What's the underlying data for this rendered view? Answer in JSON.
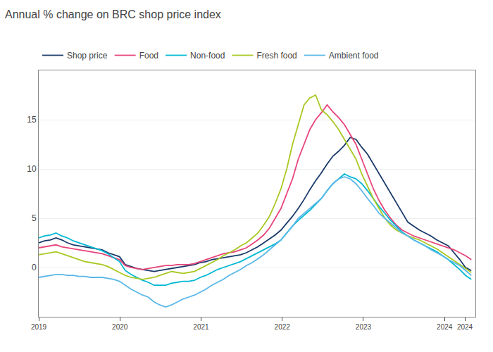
{
  "chart_data": {
    "type": "line",
    "title": "Annual % change on BRC shop price index",
    "x": [
      2019.0,
      2019.071067,
      2019.142133,
      2019.2132,
      2019.284267,
      2019.355333,
      2019.4264,
      2019.497467,
      2019.568533,
      2019.6396,
      2019.710667,
      2019.781733,
      2019.8528,
      2019.923867,
      2019.994933,
      2020.066,
      2020.137067,
      2020.208133,
      2020.2792,
      2020.350267,
      2020.421333,
      2020.4924,
      2020.563467,
      2020.634533,
      2020.7056,
      2020.776667,
      2020.847733,
      2020.9188,
      2020.989867,
      2021.060933,
      2021.132,
      2021.203067,
      2021.274133,
      2021.3452,
      2021.416267,
      2021.487333,
      2021.5584,
      2021.629467,
      2021.700533,
      2021.7716,
      2021.842667,
      2021.913733,
      2021.9848,
      2022.055867,
      2022.126933,
      2022.198,
      2022.269067,
      2022.340133,
      2022.4112,
      2022.482267,
      2022.553333,
      2022.6244,
      2022.695467,
      2022.766533,
      2022.8376,
      2022.908667,
      2022.979733,
      2023.0508,
      2023.121867,
      2023.192933,
      2023.264,
      2023.335067,
      2023.406133,
      2023.4772,
      2023.548267,
      2023.619333,
      2023.6904,
      2023.761467,
      2023.832533,
      2023.9036,
      2023.974667,
      2024.045733,
      2024.1168,
      2024.187867,
      2024.258933,
      2024.33
    ],
    "series": [
      {
        "name": "Shop price",
        "color": "#1a3a6b",
        "values": [
          2.5,
          2.7,
          2.8,
          3.0,
          2.8,
          2.5,
          2.3,
          2.2,
          2.1,
          2.0,
          1.9,
          1.8,
          1.5,
          1.3,
          1.1,
          0.3,
          0.1,
          -0.1,
          -0.2,
          -0.3,
          -0.4,
          -0.3,
          -0.2,
          -0.1,
          0.0,
          0.1,
          0.2,
          0.3,
          0.5,
          0.6,
          0.8,
          0.9,
          1.0,
          1.1,
          1.2,
          1.3,
          1.5,
          1.8,
          2.1,
          2.5,
          2.9,
          3.3,
          3.8,
          4.5,
          5.2,
          6.0,
          6.9,
          7.9,
          8.8,
          9.6,
          10.5,
          11.3,
          11.8,
          12.4,
          13.2,
          13.0,
          12.2,
          11.5,
          10.5,
          9.5,
          8.5,
          7.5,
          6.5,
          5.5,
          4.6,
          4.2,
          3.8,
          3.5,
          3.2,
          2.8,
          2.5,
          2.2,
          1.5,
          0.8,
          0.0,
          -0.3
        ]
      },
      {
        "name": "Food",
        "color": "#e8457a",
        "values": [
          2.0,
          2.1,
          2.2,
          2.3,
          2.1,
          2.0,
          1.9,
          1.8,
          1.7,
          1.6,
          1.5,
          1.4,
          1.2,
          1.0,
          0.8,
          0.2,
          0.0,
          -0.1,
          -0.2,
          -0.1,
          0.0,
          0.1,
          0.2,
          0.2,
          0.3,
          0.3,
          0.3,
          0.4,
          0.6,
          0.8,
          1.0,
          1.2,
          1.4,
          1.5,
          1.6,
          1.8,
          2.0,
          2.4,
          2.8,
          3.3,
          4.0,
          5.0,
          6.0,
          7.5,
          9.0,
          11.0,
          12.5,
          14.0,
          15.0,
          15.7,
          16.5,
          15.8,
          15.2,
          14.5,
          13.5,
          12.5,
          11.0,
          9.5,
          8.0,
          6.8,
          5.8,
          5.0,
          4.3,
          3.8,
          3.5,
          3.2,
          3.0,
          2.8,
          2.6,
          2.4,
          2.2,
          2.0,
          1.8,
          1.5,
          1.2,
          0.8
        ]
      },
      {
        "name": "Non-food",
        "color": "#00b8d4",
        "values": [
          3.0,
          3.2,
          3.3,
          3.5,
          3.2,
          3.0,
          2.7,
          2.5,
          2.3,
          2.1,
          1.9,
          1.7,
          1.4,
          1.0,
          0.6,
          -0.3,
          -0.7,
          -1.0,
          -1.3,
          -1.5,
          -1.8,
          -1.8,
          -1.8,
          -1.6,
          -1.5,
          -1.4,
          -1.4,
          -1.3,
          -1.0,
          -0.8,
          -0.5,
          -0.2,
          0.0,
          0.2,
          0.4,
          0.6,
          0.9,
          1.2,
          1.5,
          1.8,
          2.1,
          2.4,
          2.8,
          3.5,
          4.2,
          4.8,
          5.3,
          5.8,
          6.4,
          7.0,
          7.8,
          8.5,
          9.0,
          9.5,
          9.2,
          9.0,
          8.5,
          7.8,
          7.0,
          6.2,
          5.5,
          4.8,
          4.2,
          3.6,
          3.2,
          2.8,
          2.5,
          2.2,
          1.9,
          1.6,
          1.2,
          0.8,
          0.3,
          -0.2,
          -0.8,
          -1.2
        ]
      },
      {
        "name": "Fresh food",
        "color": "#a8c822",
        "values": [
          1.3,
          1.4,
          1.5,
          1.6,
          1.4,
          1.2,
          1.0,
          0.8,
          0.6,
          0.5,
          0.4,
          0.3,
          0.1,
          -0.2,
          -0.5,
          -0.8,
          -1.0,
          -1.1,
          -1.2,
          -1.1,
          -1.0,
          -0.8,
          -0.6,
          -0.4,
          -0.5,
          -0.6,
          -0.5,
          -0.4,
          -0.1,
          0.2,
          0.5,
          0.8,
          1.2,
          1.5,
          1.8,
          2.2,
          2.5,
          3.0,
          3.5,
          4.3,
          5.2,
          6.5,
          8.0,
          10.0,
          12.5,
          14.5,
          16.5,
          17.2,
          17.5,
          16.0,
          15.5,
          14.8,
          14.0,
          13.0,
          12.0,
          11.0,
          9.5,
          8.2,
          7.0,
          6.0,
          5.0,
          4.3,
          3.8,
          3.5,
          3.2,
          3.0,
          2.8,
          2.5,
          2.2,
          1.9,
          1.5,
          1.1,
          0.7,
          0.3,
          -0.1,
          -0.5
        ]
      },
      {
        "name": "Ambient food",
        "color": "#5ab8e8",
        "values": [
          -1.0,
          -0.9,
          -0.8,
          -0.7,
          -0.7,
          -0.8,
          -0.8,
          -0.9,
          -0.9,
          -1.0,
          -1.0,
          -1.0,
          -1.1,
          -1.2,
          -1.4,
          -1.8,
          -2.2,
          -2.5,
          -2.8,
          -3.0,
          -3.5,
          -3.8,
          -4.0,
          -3.8,
          -3.5,
          -3.2,
          -3.0,
          -2.8,
          -2.5,
          -2.2,
          -1.8,
          -1.5,
          -1.2,
          -0.8,
          -0.5,
          -0.2,
          0.2,
          0.5,
          0.9,
          1.3,
          1.8,
          2.3,
          2.8,
          3.5,
          4.2,
          5.0,
          5.5,
          6.0,
          6.5,
          7.0,
          7.8,
          8.5,
          9.0,
          9.2,
          9.0,
          8.5,
          7.8,
          7.0,
          6.3,
          5.5,
          5.0,
          4.5,
          4.0,
          3.5,
          3.2,
          2.8,
          2.5,
          2.2,
          1.8,
          1.5,
          1.2,
          0.8,
          0.5,
          0.2,
          -0.3,
          -0.8
        ]
      }
    ],
    "xlim": [
      2019.0,
      2024.38
    ],
    "xticks": [
      2019,
      2020,
      2021,
      2022,
      2023,
      2024,
      {
        "value": 2024.25,
        "label": "2024"
      }
    ],
    "ylim": [
      -5,
      20
    ],
    "yticks": [
      0,
      5,
      10,
      15
    ],
    "grid": true,
    "legend": "upper left"
  }
}
